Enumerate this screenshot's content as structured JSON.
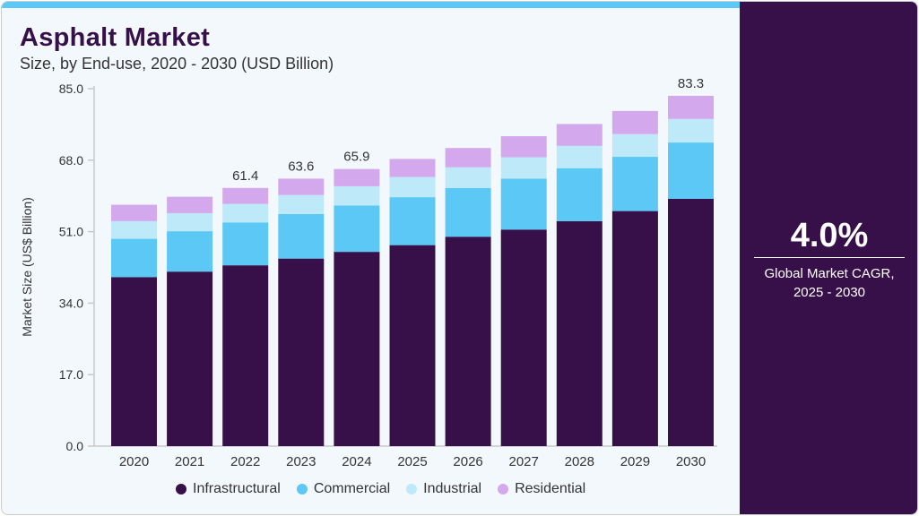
{
  "title": "Asphalt Market",
  "subtitle": "Size, by End-use, 2020 - 2030 (USD Billion)",
  "side": {
    "cagr": "4.0%",
    "label_line1": "Global Market CAGR,",
    "label_line2": "2025 - 2030"
  },
  "chart_data": {
    "type": "bar",
    "stacked": true,
    "ylabel": "Market Size (US$ Billion)",
    "ylim": [
      0,
      85
    ],
    "yticks": [
      "0.0",
      "17.0",
      "34.0",
      "51.0",
      "68.0",
      "85.0"
    ],
    "categories": [
      "2020",
      "2021",
      "2022",
      "2023",
      "2024",
      "2025",
      "2026",
      "2027",
      "2028",
      "2029",
      "2030"
    ],
    "series": [
      {
        "name": "Infrastructural",
        "color": "#37104a",
        "values": [
          40.2,
          41.5,
          43.0,
          44.6,
          46.2,
          47.8,
          49.8,
          51.5,
          53.5,
          55.9,
          58.8
        ]
      },
      {
        "name": "Commercial",
        "color": "#5bc8f5",
        "values": [
          9.1,
          9.6,
          10.2,
          10.6,
          11.0,
          11.4,
          11.6,
          12.1,
          12.6,
          12.9,
          13.4
        ]
      },
      {
        "name": "Industrial",
        "color": "#bde9f9",
        "values": [
          4.2,
          4.3,
          4.4,
          4.5,
          4.6,
          4.8,
          4.9,
          5.1,
          5.3,
          5.4,
          5.6
        ]
      },
      {
        "name": "Residential",
        "color": "#d4a8ec",
        "values": [
          3.9,
          3.9,
          3.8,
          3.9,
          4.1,
          4.3,
          4.6,
          5.0,
          5.2,
          5.5,
          5.5
        ]
      }
    ],
    "data_labels": {
      "2022": "61.4",
      "2023": "63.6",
      "2024": "65.9",
      "2030": "83.3"
    },
    "legend_position": "bottom"
  }
}
